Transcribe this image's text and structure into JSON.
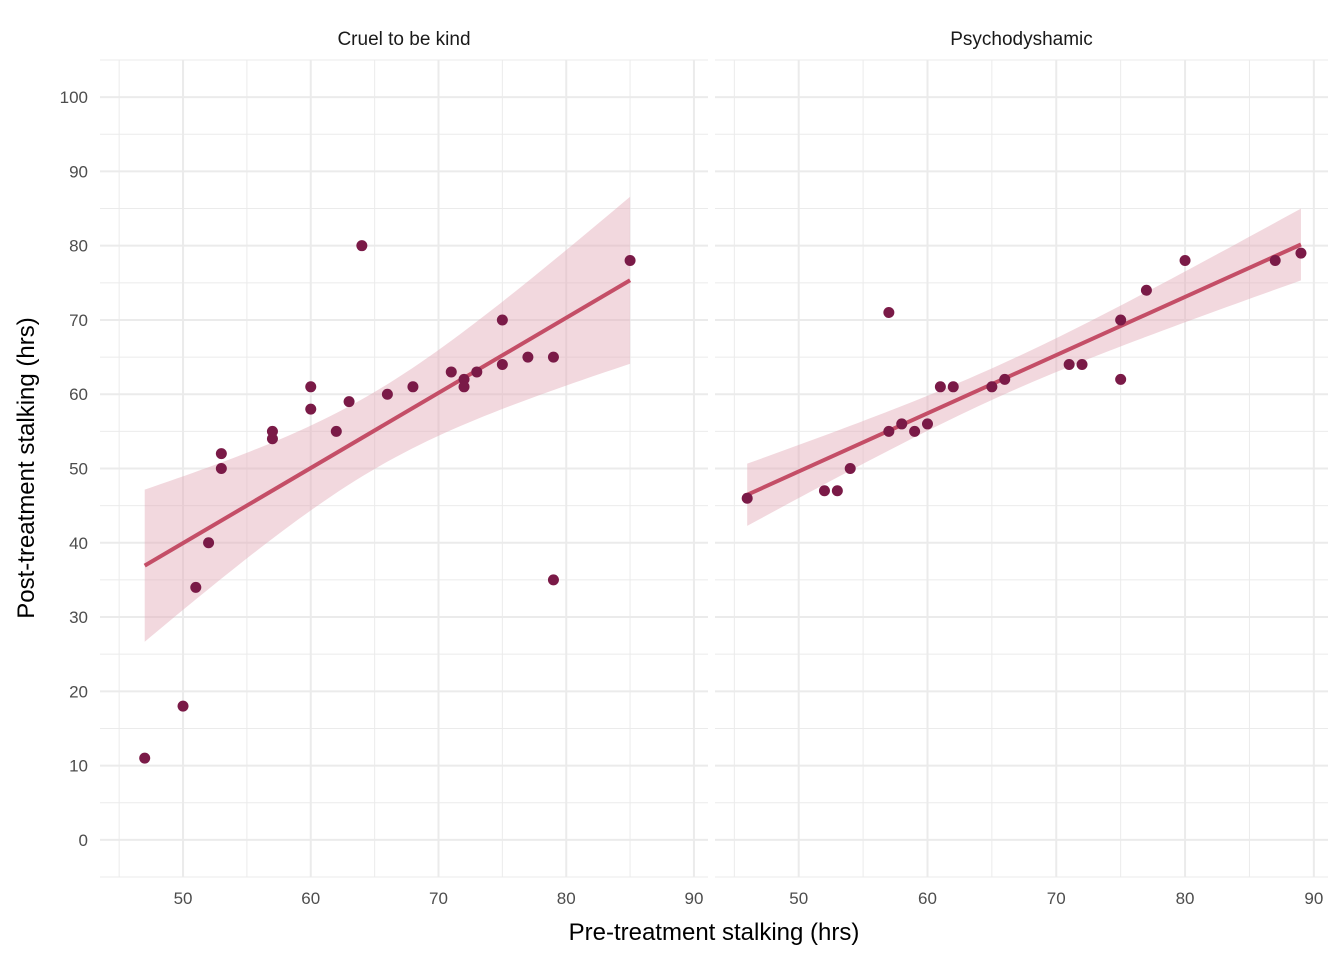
{
  "chart_data": {
    "type": "scatter",
    "xlabel": "Pre-treatment stalking (hrs)",
    "ylabel": "Post-treatment stalking (hrs)",
    "xlim": [
      43.5,
      91.1
    ],
    "ylim": [
      -5,
      105
    ],
    "xticks": [
      50,
      60,
      70,
      80,
      90
    ],
    "yticks": [
      0,
      10,
      20,
      30,
      40,
      50,
      60,
      70,
      80,
      90,
      100
    ],
    "grid": true,
    "smooth": {
      "method": "lm",
      "level": 0.95
    },
    "colors": {
      "point": "#7a1a47",
      "line": "#c44e67",
      "ribbon": "#e3a9b6",
      "grid": "#ebebeb"
    },
    "panels": [
      {
        "title": "Cruel to be kind",
        "points": [
          [
            47,
            11
          ],
          [
            50,
            18
          ],
          [
            51,
            34
          ],
          [
            52,
            40
          ],
          [
            53,
            50
          ],
          [
            53,
            52
          ],
          [
            57,
            54
          ],
          [
            57,
            55
          ],
          [
            60,
            58
          ],
          [
            60,
            61
          ],
          [
            62,
            55
          ],
          [
            63,
            59
          ],
          [
            64,
            80
          ],
          [
            66,
            60
          ],
          [
            68,
            61
          ],
          [
            71,
            63
          ],
          [
            72,
            62
          ],
          [
            72,
            61
          ],
          [
            73,
            63
          ],
          [
            75,
            70
          ],
          [
            75,
            64
          ],
          [
            77,
            65
          ],
          [
            79,
            65
          ],
          [
            79,
            35
          ],
          [
            85,
            78
          ]
        ]
      },
      {
        "title": "Psychodyshamic",
        "points": [
          [
            46,
            46
          ],
          [
            52,
            47
          ],
          [
            53,
            47
          ],
          [
            54,
            50
          ],
          [
            57,
            71
          ],
          [
            57,
            55
          ],
          [
            58,
            56
          ],
          [
            59,
            55
          ],
          [
            60,
            56
          ],
          [
            61,
            61
          ],
          [
            62,
            61
          ],
          [
            65,
            61
          ],
          [
            66,
            62
          ],
          [
            71,
            64
          ],
          [
            72,
            64
          ],
          [
            75,
            70
          ],
          [
            75,
            62
          ],
          [
            77,
            74
          ],
          [
            80,
            78
          ],
          [
            87,
            78
          ],
          [
            89,
            79
          ]
        ]
      }
    ]
  }
}
